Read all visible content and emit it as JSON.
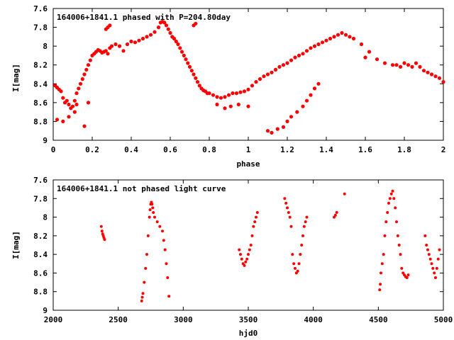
{
  "chart_data": [
    {
      "type": "scatter",
      "title": "164006+1841.1 phased with P=204.80day",
      "xlabel": "phase",
      "ylabel": "I[mag]",
      "xlim": [
        0,
        2
      ],
      "ylim": [
        9,
        7.6
      ],
      "x_ticks": [
        "0",
        "0.2",
        "0.4",
        "0.6",
        "0.8",
        "1",
        "1.2",
        "1.4",
        "1.6",
        "1.8",
        "2"
      ],
      "y_ticks": [
        "7.6",
        "7.8",
        "8",
        "8.2",
        "8.4",
        "8.6",
        "8.8",
        "9"
      ],
      "y_inverted": true,
      "grid": false,
      "marker": "filled-circle",
      "color": "#ff0000",
      "series": [
        {
          "x": [
            0.01,
            0.02,
            0.03,
            0.04,
            0.05,
            0.06,
            0.07,
            0.08,
            0.09,
            0.1,
            0.11,
            0.12,
            0.13,
            0.14,
            0.15,
            0.16,
            0.17,
            0.18,
            0.19,
            0.2,
            0.21,
            0.22,
            0.23,
            0.24,
            0.25,
            0.26,
            0.27,
            0.28,
            0.29,
            0.3,
            0.32,
            0.34,
            0.36,
            0.38,
            0.4,
            0.42,
            0.44,
            0.46,
            0.48,
            0.5,
            0.52,
            0.54,
            0.55,
            0.56,
            0.57,
            0.58,
            0.59,
            0.6,
            0.61,
            0.62,
            0.63,
            0.64,
            0.65,
            0.66,
            0.67,
            0.68,
            0.69,
            0.7,
            0.71,
            0.72,
            0.73,
            0.74,
            0.75,
            0.76,
            0.77,
            0.78,
            0.79,
            0.8,
            0.82,
            0.84,
            0.86,
            0.88,
            0.9,
            0.92,
            0.94,
            0.96,
            0.98,
            1.0,
            1.02,
            1.04,
            1.06,
            1.08,
            1.1,
            1.12,
            1.14,
            1.16,
            1.18,
            1.2,
            1.22,
            1.24,
            1.26,
            1.28,
            1.3,
            1.32,
            1.34,
            1.36,
            1.38,
            1.4,
            1.42,
            1.44,
            1.46,
            1.48,
            1.5,
            1.52,
            1.54,
            1.58,
            1.62,
            1.66,
            1.7,
            1.74,
            1.78,
            1.82,
            1.86,
            1.88,
            1.9,
            1.92,
            1.94,
            1.96,
            1.98,
            2.0,
            0.02,
            0.05,
            0.08,
            0.11,
            0.16,
            0.12,
            0.18,
            0.27,
            0.28,
            0.29,
            0.72,
            0.73,
            0.84,
            0.88,
            0.91,
            0.95,
            1.0,
            1.1,
            1.12,
            1.15,
            1.18,
            1.2,
            1.22,
            1.25,
            1.28,
            1.3,
            1.32,
            1.34,
            1.36,
            1.6,
            1.76,
            1.8,
            1.84
          ],
          "y": [
            8.42,
            8.44,
            8.46,
            8.48,
            8.55,
            8.6,
            8.58,
            8.62,
            8.66,
            8.64,
            8.58,
            8.5,
            8.45,
            8.4,
            8.35,
            8.3,
            8.25,
            8.2,
            8.15,
            8.1,
            8.08,
            8.06,
            8.04,
            8.05,
            8.07,
            8.06,
            8.05,
            8.08,
            8.02,
            8.0,
            7.98,
            8.0,
            8.05,
            7.98,
            7.95,
            7.96,
            7.94,
            7.92,
            7.9,
            7.88,
            7.85,
            7.8,
            7.75,
            7.74,
            7.75,
            7.78,
            7.82,
            7.86,
            7.9,
            7.92,
            7.95,
            7.98,
            8.02,
            8.06,
            8.1,
            8.14,
            8.18,
            8.22,
            8.26,
            8.3,
            8.34,
            8.38,
            8.42,
            8.45,
            8.47,
            8.48,
            8.5,
            8.5,
            8.52,
            8.54,
            8.55,
            8.54,
            8.52,
            8.5,
            8.5,
            8.49,
            8.48,
            8.46,
            8.42,
            8.38,
            8.35,
            8.32,
            8.3,
            8.28,
            8.25,
            8.22,
            8.2,
            8.18,
            8.15,
            8.12,
            8.1,
            8.08,
            8.05,
            8.02,
            8.0,
            7.98,
            7.96,
            7.94,
            7.92,
            7.9,
            7.88,
            7.86,
            7.88,
            7.9,
            7.92,
            7.98,
            8.06,
            8.14,
            8.18,
            8.2,
            8.22,
            8.2,
            8.18,
            8.22,
            8.26,
            8.28,
            8.3,
            8.32,
            8.34,
            8.38,
            8.78,
            8.8,
            8.75,
            8.7,
            8.85,
            8.62,
            8.6,
            7.82,
            7.8,
            7.78,
            7.78,
            7.76,
            8.62,
            8.66,
            8.64,
            8.62,
            8.64,
            8.9,
            8.92,
            8.88,
            8.86,
            8.8,
            8.75,
            8.7,
            8.64,
            8.58,
            8.52,
            8.45,
            8.4,
            8.12,
            8.2,
            8.18,
            8.22
          ]
        }
      ]
    },
    {
      "type": "scatter",
      "title": "164006+1841.1 not phased light curve",
      "xlabel": "hjd0",
      "ylabel": "I[mag]",
      "xlim": [
        2000,
        5000
      ],
      "ylim": [
        9,
        7.6
      ],
      "x_ticks": [
        "2000",
        "2500",
        "3000",
        "3500",
        "4000",
        "4500",
        "5000"
      ],
      "y_ticks": [
        "7.6",
        "7.8",
        "8",
        "8.2",
        "8.4",
        "8.6",
        "8.8",
        "9"
      ],
      "y_inverted": true,
      "grid": false,
      "marker": "filled-circle",
      "color": "#ff0000",
      "series": [
        {
          "x": [
            2370,
            2375,
            2380,
            2385,
            2390,
            2395,
            2680,
            2685,
            2690,
            2700,
            2710,
            2720,
            2730,
            2740,
            2745,
            2750,
            2755,
            2760,
            2765,
            2770,
            2780,
            2800,
            2820,
            2840,
            2850,
            2860,
            2870,
            2880,
            2890,
            3430,
            3440,
            3450,
            3460,
            3470,
            3480,
            3490,
            3500,
            3510,
            3520,
            3530,
            3540,
            3550,
            3560,
            3570,
            3780,
            3790,
            3800,
            3810,
            3820,
            3830,
            3840,
            3850,
            3860,
            3870,
            3880,
            3890,
            3900,
            3910,
            3920,
            3930,
            3940,
            3950,
            4160,
            4170,
            4180,
            4240,
            4510,
            4515,
            4520,
            4530,
            4540,
            4550,
            4560,
            4570,
            4580,
            4590,
            4600,
            4610,
            4620,
            4630,
            4640,
            4650,
            4660,
            4670,
            4680,
            4690,
            4700,
            4710,
            4720,
            4730,
            4860,
            4870,
            4880,
            4890,
            4900,
            4910,
            4920,
            4930,
            4940,
            4950,
            4960,
            4970
          ],
          "y": [
            8.1,
            8.15,
            8.18,
            8.2,
            8.22,
            8.24,
            8.9,
            8.86,
            8.82,
            8.7,
            8.55,
            8.4,
            8.2,
            8.0,
            7.92,
            7.86,
            7.84,
            7.86,
            7.9,
            7.95,
            8.0,
            8.05,
            8.1,
            8.15,
            8.25,
            8.35,
            8.5,
            8.65,
            8.85,
            8.35,
            8.4,
            8.45,
            8.5,
            8.52,
            8.48,
            8.45,
            8.4,
            8.35,
            8.3,
            8.2,
            8.1,
            8.05,
            8.0,
            7.95,
            7.8,
            7.85,
            7.9,
            7.95,
            8.0,
            8.1,
            8.4,
            8.5,
            8.55,
            8.6,
            8.58,
            8.5,
            8.4,
            8.3,
            8.2,
            8.1,
            8.05,
            8.0,
            8.0,
            7.98,
            7.95,
            7.75,
            8.78,
            8.72,
            8.6,
            8.5,
            8.4,
            8.2,
            8.05,
            7.95,
            7.85,
            7.8,
            7.75,
            7.72,
            7.8,
            7.9,
            8.05,
            8.2,
            8.3,
            8.4,
            8.55,
            8.6,
            8.62,
            8.64,
            8.65,
            8.62,
            8.2,
            8.3,
            8.35,
            8.4,
            8.45,
            8.5,
            8.55,
            8.6,
            8.65,
            8.55,
            8.45,
            8.35
          ]
        }
      ]
    }
  ]
}
